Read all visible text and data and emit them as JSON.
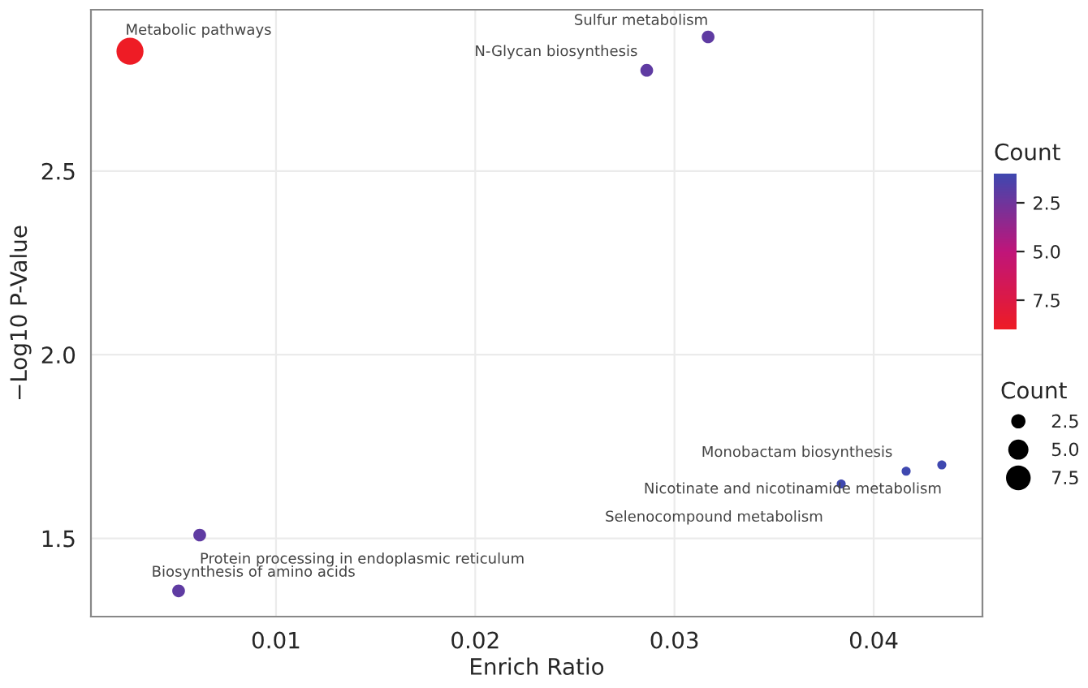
{
  "chart_data": {
    "type": "bubble",
    "xlabel": "Enrich Ratio",
    "ylabel": "−Log10 P-Value",
    "x": [
      0.00267,
      0.03169,
      0.02861,
      0.00617,
      0.00511,
      0.04163,
      0.04342,
      0.03837
    ],
    "values": [
      2.826,
      2.865,
      2.774,
      1.509,
      1.357,
      1.683,
      1.7,
      1.648
    ],
    "sizes": [
      9,
      2,
      2,
      2,
      2,
      1,
      1,
      1
    ],
    "cvalues": [
      9,
      2,
      2,
      2,
      2,
      1,
      1,
      1
    ],
    "size_legend": [
      2.5,
      {
        "value": 5,
        "label": "5.0"
      },
      7.5
    ],
    "legend_title": "Count",
    "clabel": "Count",
    "clim": [
      1,
      9
    ],
    "cticks": [
      2.5,
      {
        "value": 5,
        "label": "5.0"
      },
      7.5
    ],
    "annotations": [
      {
        "text": "Metabolic pathways",
        "x": 0.00267,
        "y": 2.826
      },
      {
        "text": "Sulfur metabolism",
        "x": 0.03169,
        "y": 2.865
      },
      {
        "text": "N-Glycan biosynthesis",
        "x": 0.02861,
        "y": 2.774
      },
      {
        "text": "Protein processing in endoplasmic reticulum",
        "x": 0.00617,
        "y": 1.509
      },
      {
        "text": "Biosynthesis of amino acids",
        "x": 0.00511,
        "y": 1.357
      },
      {
        "text": "Monobactam biosynthesis",
        "x": 0.04163,
        "y": 1.683
      },
      {
        "text": "Nicotinate and nicotinamide metabolism",
        "x": 0.04342,
        "y": 1.7
      },
      {
        "text": "Selenocompound metabolism",
        "x": 0.03837,
        "y": 1.648
      }
    ],
    "xlim": [
      0.00071,
      0.04546
    ],
    "xticks": [
      0.01,
      0.02,
      0.03,
      0.04
    ],
    "ylim": [
      1.287,
      2.939
    ],
    "yticks": [
      1.5,
      {
        "value": 2,
        "label": "2.0"
      },
      2.5
    ],
    "grid": true
  }
}
